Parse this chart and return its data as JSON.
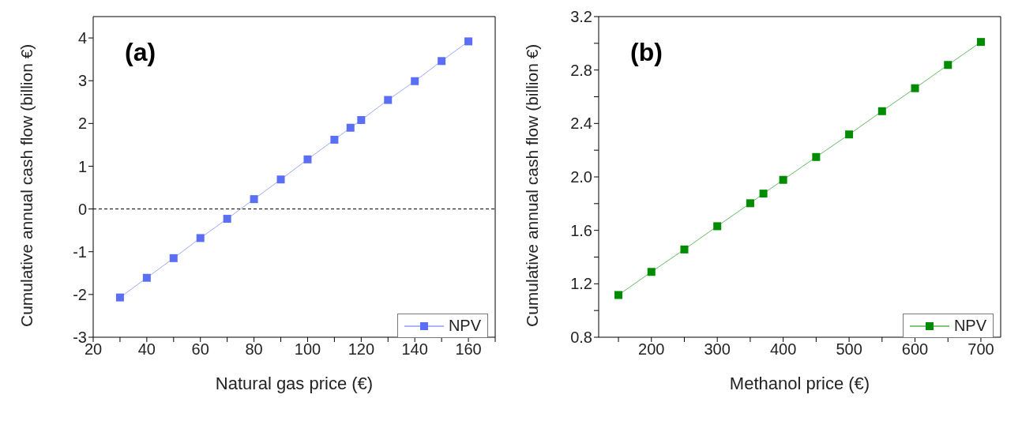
{
  "chart_data": [
    {
      "type": "line",
      "xlabel": "Natural gas price (€)",
      "ylabel": "Cumulative annual cash flow (billion €)",
      "annotations": [
        "(a)"
      ],
      "x": [
        30,
        40,
        50,
        60,
        70,
        80,
        90,
        100,
        110,
        116,
        120,
        130,
        140,
        150,
        160
      ],
      "series": [
        {
          "name": "NPV",
          "color": "#5b6ff5",
          "values": [
            -2.07,
            -1.61,
            -1.15,
            -0.68,
            -0.23,
            0.23,
            0.69,
            1.16,
            1.62,
            1.9,
            2.08,
            2.55,
            2.99,
            3.46,
            3.92
          ]
        }
      ],
      "xlim": [
        20,
        170
      ],
      "xticks": [
        20,
        {
          "value": 30,
          "label": null
        },
        40,
        {
          "value": 50,
          "label": null
        },
        60,
        {
          "value": 70,
          "label": null
        },
        80,
        {
          "value": 90,
          "label": null
        },
        100,
        {
          "value": 110,
          "label": null
        },
        120,
        {
          "value": 130,
          "label": null
        },
        140,
        {
          "value": 150,
          "label": null
        },
        160,
        {
          "value": 170,
          "label": null
        }
      ],
      "ylim": [
        -3,
        4.5
      ],
      "yticks": [
        -3,
        -2,
        -1,
        0,
        1,
        2,
        3,
        4
      ],
      "ref_lines": [
        {
          "axis": "y",
          "value": 0,
          "color": "#000000",
          "line_style": "dashed"
        }
      ],
      "marker": "square",
      "line_style": "solid",
      "legend": "bottom right",
      "grid": false
    },
    {
      "type": "line",
      "xlabel": "Methanol price (€)",
      "ylabel": "Cumulative annual cash flow (billion €)",
      "annotations": [
        "(b)"
      ],
      "x": [
        150,
        200,
        250,
        300,
        350,
        370,
        400,
        450,
        500,
        550,
        600,
        650,
        700
      ],
      "series": [
        {
          "name": "NPV",
          "color": "#008c00",
          "values": [
            1.116,
            1.289,
            1.457,
            1.631,
            1.803,
            1.875,
            1.978,
            2.149,
            2.318,
            2.492,
            2.664,
            2.838,
            3.01
          ]
        }
      ],
      "xlim": [
        120,
        730
      ],
      "xticks": [
        {
          "value": 150,
          "label": null
        },
        200,
        {
          "value": 250,
          "label": null
        },
        300,
        {
          "value": 350,
          "label": null
        },
        400,
        {
          "value": 450,
          "label": null
        },
        500,
        {
          "value": 550,
          "label": null
        },
        600,
        {
          "value": 650,
          "label": null
        },
        700
      ],
      "ylim": [
        0.8,
        3.2
      ],
      "yticks": [
        {
          "value": 0.8,
          "label": "0.8"
        },
        {
          "value": 1.0,
          "label": null
        },
        {
          "value": 1.2,
          "label": "1.2"
        },
        {
          "value": 1.4,
          "label": null
        },
        {
          "value": 1.6,
          "label": "1.6"
        },
        {
          "value": 1.8,
          "label": null
        },
        {
          "value": 2.0,
          "label": "2.0"
        },
        {
          "value": 2.2,
          "label": null
        },
        {
          "value": 2.4,
          "label": "2.4"
        },
        {
          "value": 2.6,
          "label": null
        },
        {
          "value": 2.8,
          "label": "2.8"
        },
        {
          "value": 3.0,
          "label": null
        },
        {
          "value": 3.2,
          "label": "3.2"
        }
      ],
      "marker": "square",
      "line_style": "solid",
      "legend": "bottom right",
      "grid": false
    }
  ]
}
